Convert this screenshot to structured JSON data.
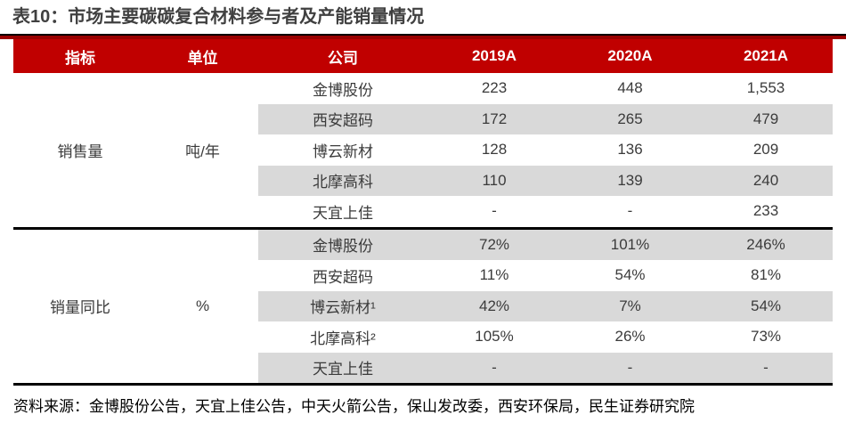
{
  "title": "表10：市场主要碳碳复合材料参与者及产能销量情况",
  "colors": {
    "header_bg": "#C00000",
    "title_rule_red": "#990000",
    "title_rule_black": "#000000",
    "row_stripe": "#D9D9D9",
    "title_text": "#404040",
    "cell_text": "#3B3B3B"
  },
  "table": {
    "headers": [
      "指标",
      "单位",
      "公司",
      "2019A",
      "2020A",
      "2021A"
    ],
    "sections": [
      {
        "indicator": "销售量",
        "unit": "吨/年",
        "rows": [
          {
            "company": "金博股份",
            "y2019": "223",
            "y2020": "448",
            "y2021": "1,553"
          },
          {
            "company": "西安超码",
            "y2019": "172",
            "y2020": "265",
            "y2021": "479"
          },
          {
            "company": "博云新材",
            "y2019": "128",
            "y2020": "136",
            "y2021": "209"
          },
          {
            "company": "北摩高科",
            "y2019": "110",
            "y2020": "139",
            "y2021": "240"
          },
          {
            "company": "天宜上佳",
            "y2019": "-",
            "y2020": "-",
            "y2021": "233"
          }
        ]
      },
      {
        "indicator": "销量同比",
        "unit": "%",
        "rows": [
          {
            "company": "金博股份",
            "y2019": "72%",
            "y2020": "101%",
            "y2021": "246%"
          },
          {
            "company": "西安超码",
            "y2019": "11%",
            "y2020": "54%",
            "y2021": "81%"
          },
          {
            "company": "博云新材¹",
            "y2019": "42%",
            "y2020": "7%",
            "y2021": "54%"
          },
          {
            "company": "北摩高科²",
            "y2019": "105%",
            "y2020": "26%",
            "y2021": "73%"
          },
          {
            "company": "天宜上佳",
            "y2019": "-",
            "y2020": "-",
            "y2021": "-"
          }
        ]
      }
    ]
  },
  "source": "资料来源：金博股份公告，天宜上佳公告，中天火箭公告，保山发改委，西安环保局，民生证券研究院"
}
